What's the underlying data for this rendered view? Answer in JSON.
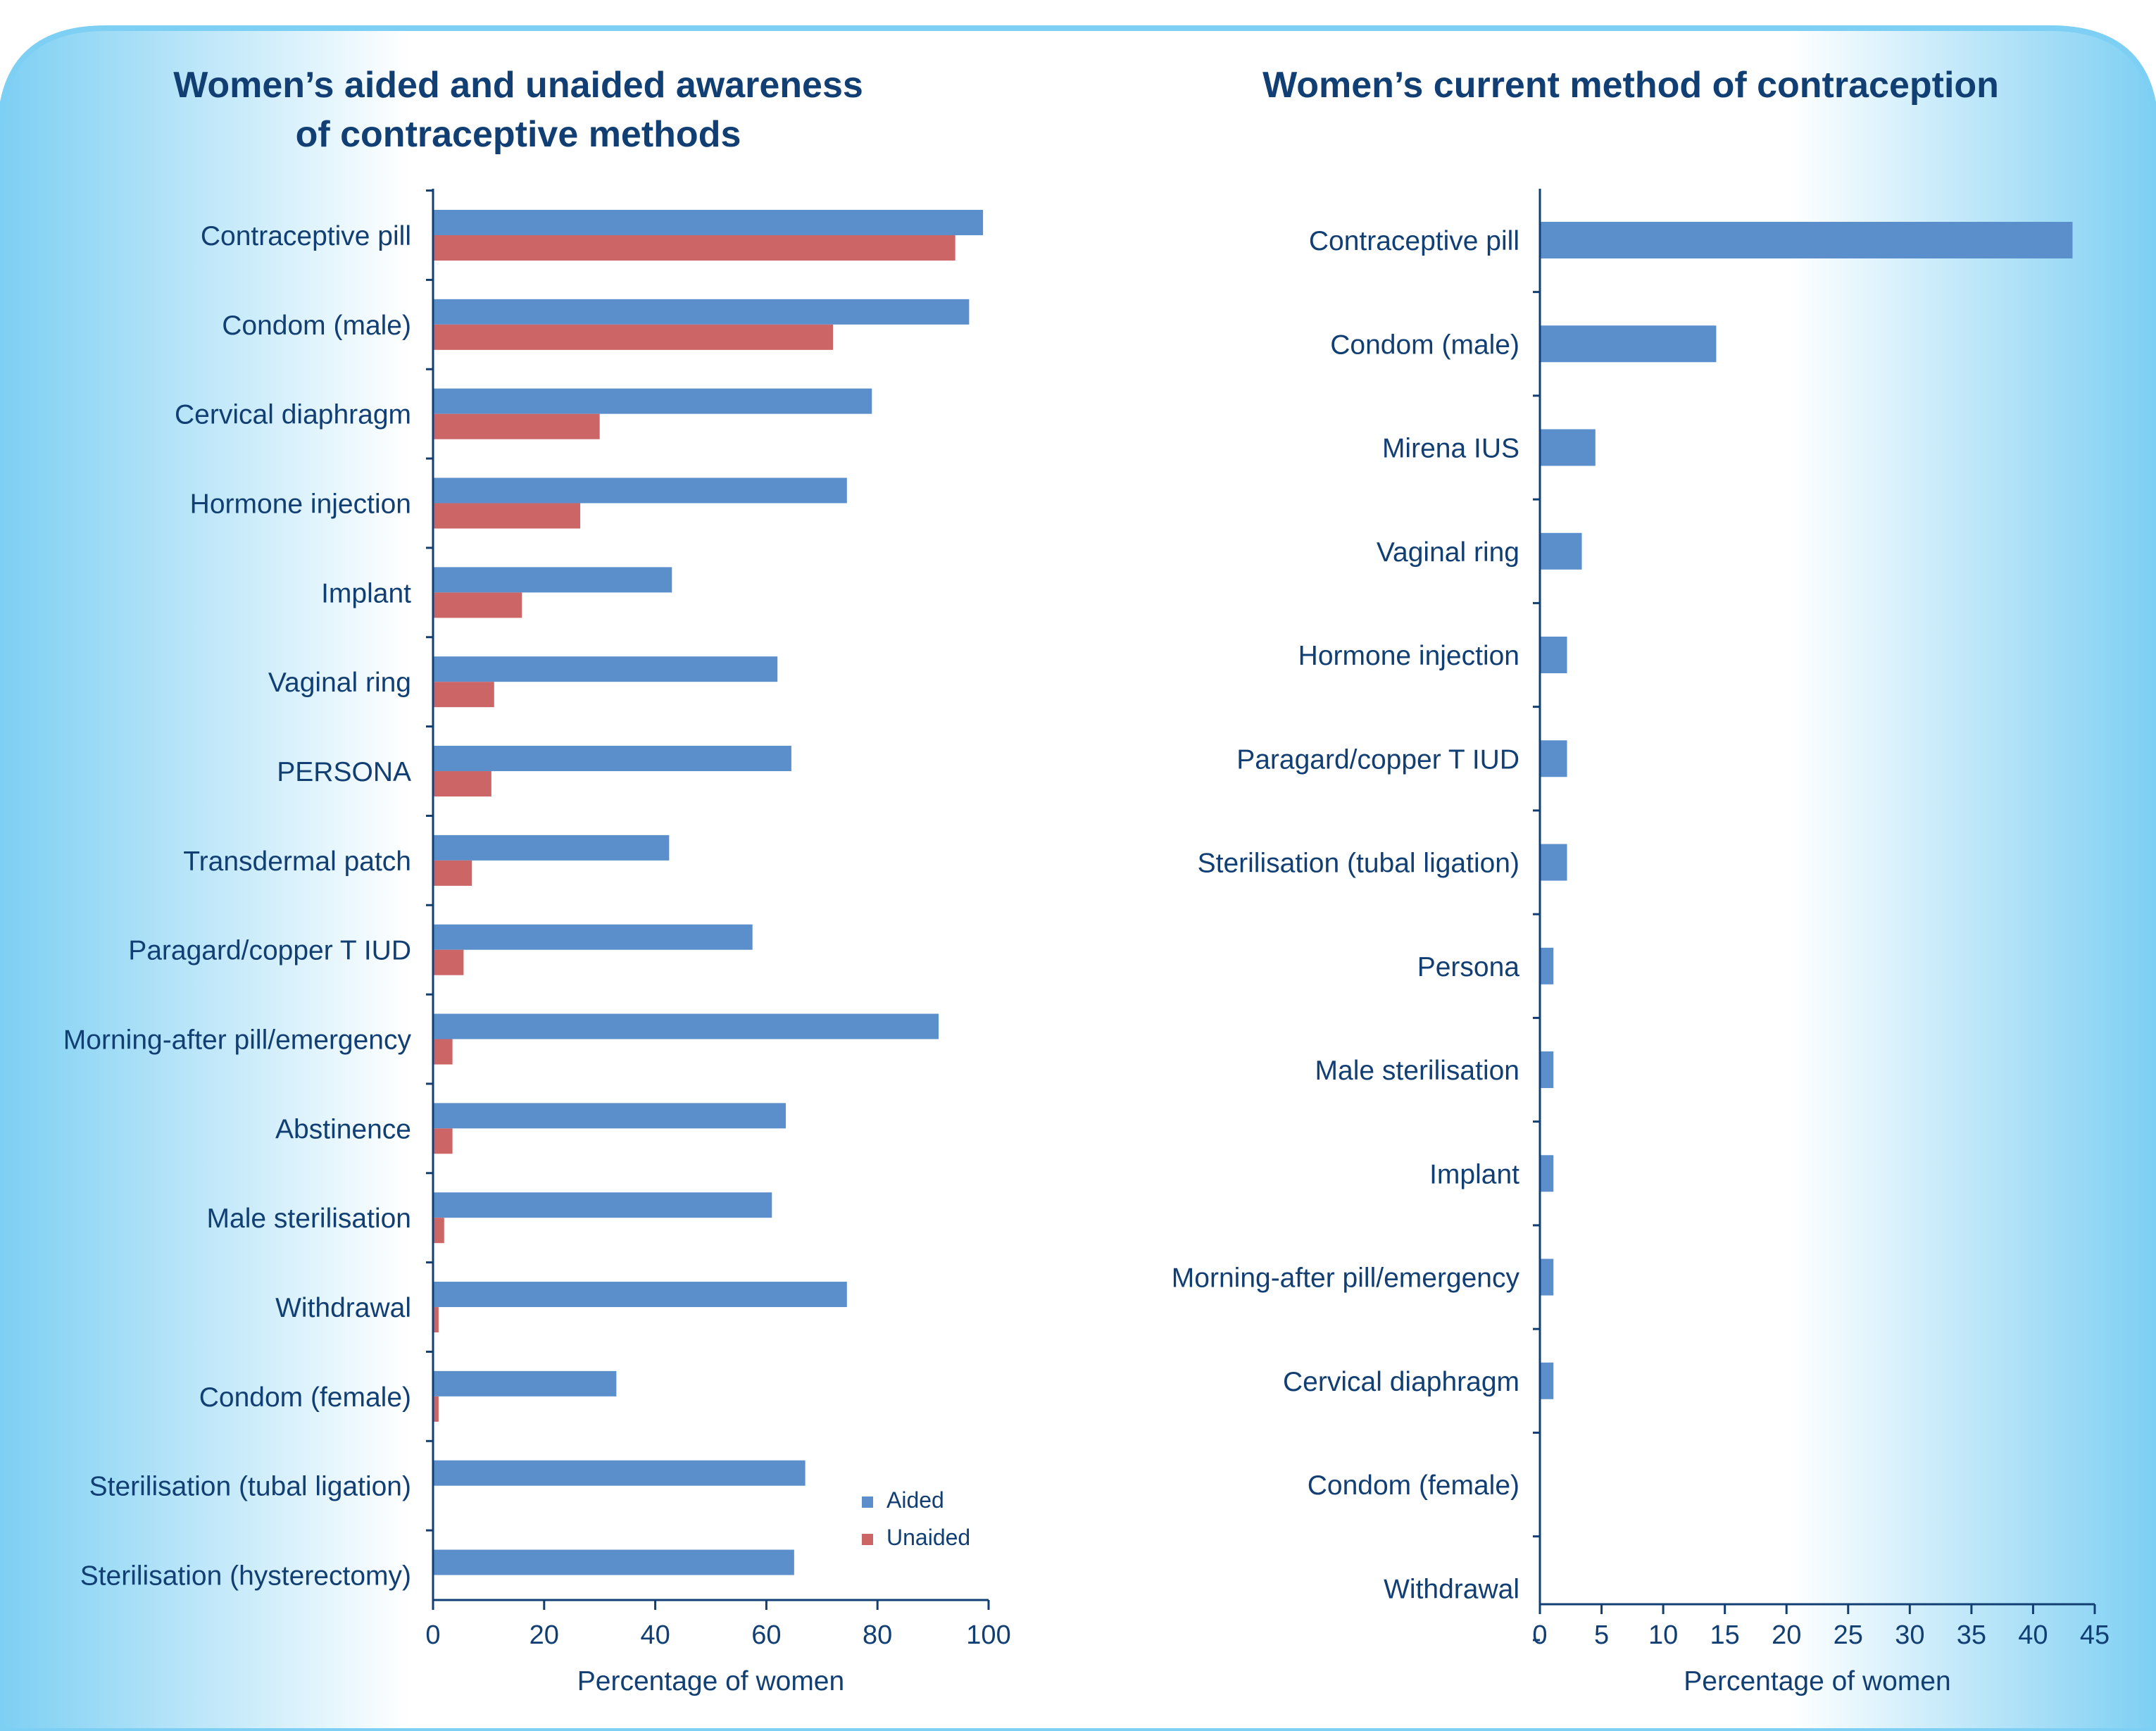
{
  "colors": {
    "aided": "#5b8fcb",
    "unaided": "#cc6666",
    "single": "#5b8fcb",
    "text": "#123f73",
    "axis": "#123f73",
    "bg_light": "#ffffff",
    "bg_blue": "#7dcff3"
  },
  "chart_data": [
    {
      "type": "bar",
      "orientation": "horizontal",
      "title_lines": [
        "Women’s aided and unaided awareness",
        "of contraceptive methods"
      ],
      "categories": [
        "Contraceptive pill",
        "Condom (male)",
        "Cervical diaphragm",
        "Hormone injection",
        "Implant",
        "Vaginal ring",
        "PERSONA",
        "Transdermal patch",
        "Paragard/copper T IUD",
        "Morning-after pill/emergency",
        "Abstinence",
        "Male sterilisation",
        "Withdrawal",
        "Condom (female)",
        "Sterilisation (tubal ligation)",
        "Sterilisation (hysterectomy)"
      ],
      "series": [
        {
          "name": "Aided",
          "values": [
            99,
            96.5,
            79,
            74.5,
            43,
            62,
            64.5,
            42.5,
            57.5,
            91,
            63.5,
            61,
            74.5,
            33,
            67,
            65
          ]
        },
        {
          "name": "Unaided",
          "values": [
            94,
            72,
            30,
            26.5,
            16,
            11,
            10.5,
            7,
            5.5,
            3.5,
            3.5,
            2,
            1,
            1,
            0,
            0
          ]
        }
      ],
      "xlabel": "Percentage of women",
      "ylabel": "",
      "xlim": [
        0,
        100
      ],
      "xticks": [
        "0",
        "20",
        "40",
        "60",
        "80",
        "100"
      ],
      "legend": [
        "Aided",
        "Unaided"
      ],
      "legend_position": "bottom-right",
      "grid": false
    },
    {
      "type": "bar",
      "orientation": "horizontal",
      "title_lines": [
        "Women’s current method of contraception"
      ],
      "categories": [
        "Contraceptive pill",
        "Condom (male)",
        "Mirena IUS",
        "Vaginal ring",
        "Hormone injection",
        "Paragard/copper T IUD",
        "Sterilisation (tubal ligation)",
        "Persona",
        "Male sterilisation",
        "Implant",
        "Morning-after pill/emergency",
        "Cervical diaphragm",
        "Condom (female)",
        "Withdrawal"
      ],
      "values": [
        43.2,
        14.3,
        4.5,
        3.4,
        2.2,
        2.2,
        2.2,
        1.1,
        1.1,
        1.1,
        1.1,
        1.1,
        0,
        0
      ],
      "xlabel": "Percentage of women",
      "ylabel": "",
      "xlim": [
        0,
        45
      ],
      "xticks": [
        "0",
        "5",
        "10",
        "15",
        "20",
        "25",
        "30",
        "35",
        "40",
        "45"
      ],
      "grid": false
    }
  ]
}
